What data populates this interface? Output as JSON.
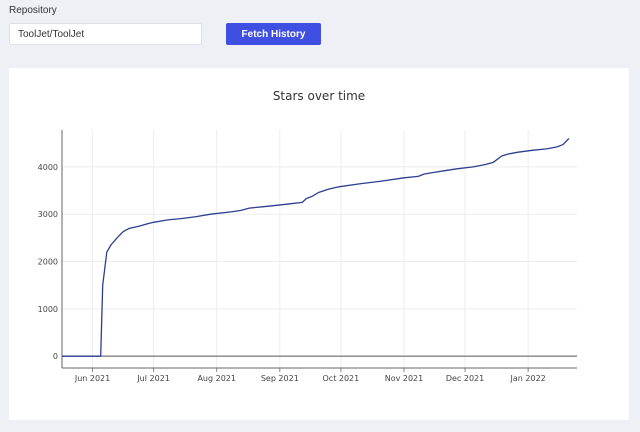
{
  "form": {
    "repo_label": "Repository",
    "repo_value": "ToolJet/ToolJet",
    "fetch_label": "Fetch History"
  },
  "chart_data": {
    "type": "line",
    "title": "Stars over time",
    "xlabel": "",
    "ylabel": "",
    "xlim": [
      "2021-05-17",
      "2022-01-25"
    ],
    "ylim": [
      -250,
      4780
    ],
    "yticks": [
      0,
      1000,
      2000,
      3000,
      4000
    ],
    "xticks": [
      {
        "value": "2021-06-01",
        "label": "Jun 2021"
      },
      {
        "value": "2021-07-01",
        "label": "Jul 2021"
      },
      {
        "value": "2021-08-01",
        "label": "Aug 2021"
      },
      {
        "value": "2021-09-01",
        "label": "Sep 2021"
      },
      {
        "value": "2021-10-01",
        "label": "Oct 2021"
      },
      {
        "value": "2021-11-01",
        "label": "Nov 2021"
      },
      {
        "value": "2021-12-01",
        "label": "Dec 2021"
      },
      {
        "value": "2022-01-01",
        "label": "Jan 2022"
      }
    ],
    "grid": true,
    "line_color": "#2a3f8f",
    "series": [
      {
        "x": [
          "2021-05-17",
          "2021-06-05",
          "2021-06-06",
          "2021-06-08",
          "2021-06-10",
          "2021-06-13",
          "2021-06-16",
          "2021-06-19",
          "2021-06-24",
          "2021-06-28",
          "2021-07-01",
          "2021-07-08",
          "2021-07-15",
          "2021-07-22",
          "2021-07-29",
          "2021-08-08",
          "2021-08-13",
          "2021-08-17",
          "2021-08-24",
          "2021-08-31",
          "2021-09-06",
          "2021-09-12",
          "2021-09-14",
          "2021-09-17",
          "2021-09-20",
          "2021-09-25",
          "2021-09-30",
          "2021-10-10",
          "2021-10-21",
          "2021-11-01",
          "2021-11-08",
          "2021-11-11",
          "2021-11-15",
          "2021-11-21",
          "2021-11-27",
          "2021-12-05",
          "2021-12-11",
          "2021-12-15",
          "2021-12-19",
          "2021-12-22",
          "2021-12-27",
          "2022-01-03",
          "2022-01-10",
          "2022-01-15",
          "2022-01-18",
          "2022-01-21"
        ],
        "y": [
          0,
          0,
          1500,
          2200,
          2350,
          2500,
          2630,
          2700,
          2750,
          2800,
          2830,
          2880,
          2910,
          2950,
          3000,
          3050,
          3080,
          3130,
          3160,
          3190,
          3220,
          3250,
          3330,
          3380,
          3460,
          3530,
          3580,
          3640,
          3700,
          3770,
          3800,
          3850,
          3880,
          3920,
          3960,
          4000,
          4050,
          4100,
          4230,
          4270,
          4310,
          4350,
          4380,
          4420,
          4470,
          4600
        ]
      }
    ]
  }
}
